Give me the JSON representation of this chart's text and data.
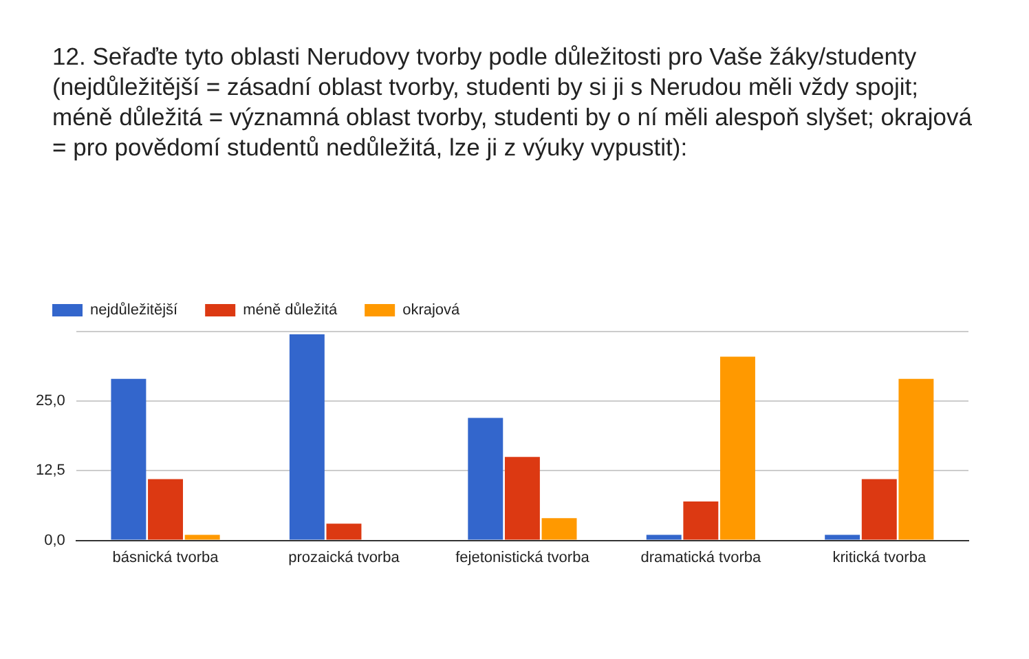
{
  "chart_data": {
    "type": "bar",
    "title": "12. Seřaďte tyto oblasti Nerudovy tvorby podle důležitosti pro Vaše žáky/studenty (nejdůležitější = zásadní oblast tvorby, studenti by si ji s Nerudou měli vždy spojit; méně důležitá = významná oblast tvorby, studenti by o ní měli alespoň slyšet; okrajová = pro povědomí studentů nedůležitá, lze ji z výuky vypustit):",
    "categories": [
      "básnická tvorba",
      "prozaická tvorba",
      "fejetonistická tvorba",
      "dramatická tvorba",
      "kritická tvorba"
    ],
    "series": [
      {
        "name": "nejdůležitější",
        "color": "#3366cc",
        "values": [
          29,
          37,
          22,
          1,
          1
        ]
      },
      {
        "name": "méně důležitá",
        "color": "#dc3912",
        "values": [
          11,
          3,
          15,
          7,
          11
        ]
      },
      {
        "name": "okrajová",
        "color": "#ff9900",
        "values": [
          1,
          0,
          4,
          33,
          29
        ]
      }
    ],
    "ylim": [
      0,
      37.5
    ],
    "yticks": [
      {
        "value": 0,
        "label": "0,0"
      },
      {
        "value": 12.5,
        "label": "12,5"
      },
      {
        "value": 25,
        "label": "25,0"
      },
      {
        "value": 37.5,
        "label": null
      }
    ],
    "grid": "y",
    "legend": "top left"
  }
}
